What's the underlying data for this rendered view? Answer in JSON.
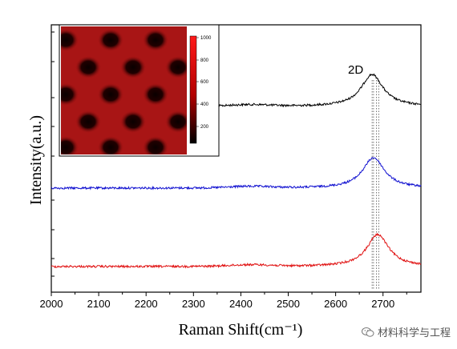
{
  "chart_data": {
    "type": "line",
    "xlabel": "Raman Shift(cm⁻¹)",
    "ylabel": "Intensity(a.u.)",
    "xlim": [
      2000,
      2780
    ],
    "x_ticks": [
      "2000",
      "2100",
      "2200",
      "2300",
      "2400",
      "2500",
      "2600",
      "2700"
    ],
    "peak_label": "2D",
    "series": [
      {
        "color": "#000000",
        "peak_center": 2677,
        "peak_height": 1.0,
        "peak_width": 28
      },
      {
        "color": "#1010d0",
        "peak_center": 2680,
        "peak_height": 1.0,
        "peak_width": 28
      },
      {
        "color": "#e01010",
        "peak_center": 2689,
        "peak_height": 1.0,
        "peak_width": 28
      }
    ],
    "peak_reference_lines": [
      2677,
      2680,
      2686,
      2691
    ],
    "inset": {
      "colorbar_ticks": [
        "1000",
        "800",
        "600",
        "400",
        "200"
      ]
    }
  },
  "watermark": {
    "text": "材料科学与工程",
    "icon": "wechat-icon"
  }
}
